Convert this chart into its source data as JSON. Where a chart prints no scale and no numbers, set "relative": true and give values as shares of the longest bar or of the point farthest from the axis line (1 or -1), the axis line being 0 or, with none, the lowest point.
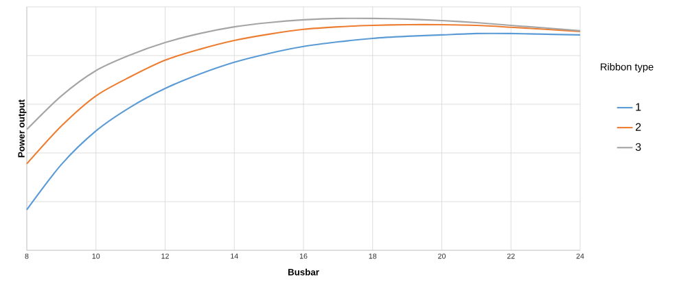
{
  "chart_data": {
    "type": "line",
    "xlabel": "Busbar",
    "ylabel": "Power output",
    "legend_title": "Ribbon type",
    "relative": true,
    "x": [
      8,
      9,
      10,
      11,
      12,
      13,
      14,
      15,
      16,
      17,
      18,
      19,
      20,
      21,
      22,
      23,
      24
    ],
    "xlim": [
      8,
      24
    ],
    "xticks": [
      8,
      10,
      12,
      14,
      16,
      18,
      20,
      22,
      24
    ],
    "grid": true,
    "legend": "right",
    "line_style": "solid",
    "marker": "none",
    "series": [
      {
        "name": "1",
        "color": "#5b9bd5",
        "values": [
          0.175,
          0.37,
          0.515,
          0.618,
          0.698,
          0.76,
          0.811,
          0.849,
          0.879,
          0.899,
          0.914,
          0.923,
          0.929,
          0.935,
          0.935,
          0.932,
          0.929
        ]
      },
      {
        "name": "2",
        "color": "#ed7d31",
        "values": [
          0.373,
          0.536,
          0.666,
          0.749,
          0.82,
          0.867,
          0.905,
          0.932,
          0.953,
          0.964,
          0.97,
          0.973,
          0.973,
          0.97,
          0.962,
          0.953,
          0.944
        ]
      },
      {
        "name": "3",
        "color": "#a5a5a5",
        "values": [
          0.521,
          0.666,
          0.775,
          0.843,
          0.896,
          0.935,
          0.964,
          0.982,
          0.994,
          1,
          1,
          0.997,
          0.991,
          0.982,
          0.97,
          0.959,
          0.947
        ]
      }
    ]
  }
}
